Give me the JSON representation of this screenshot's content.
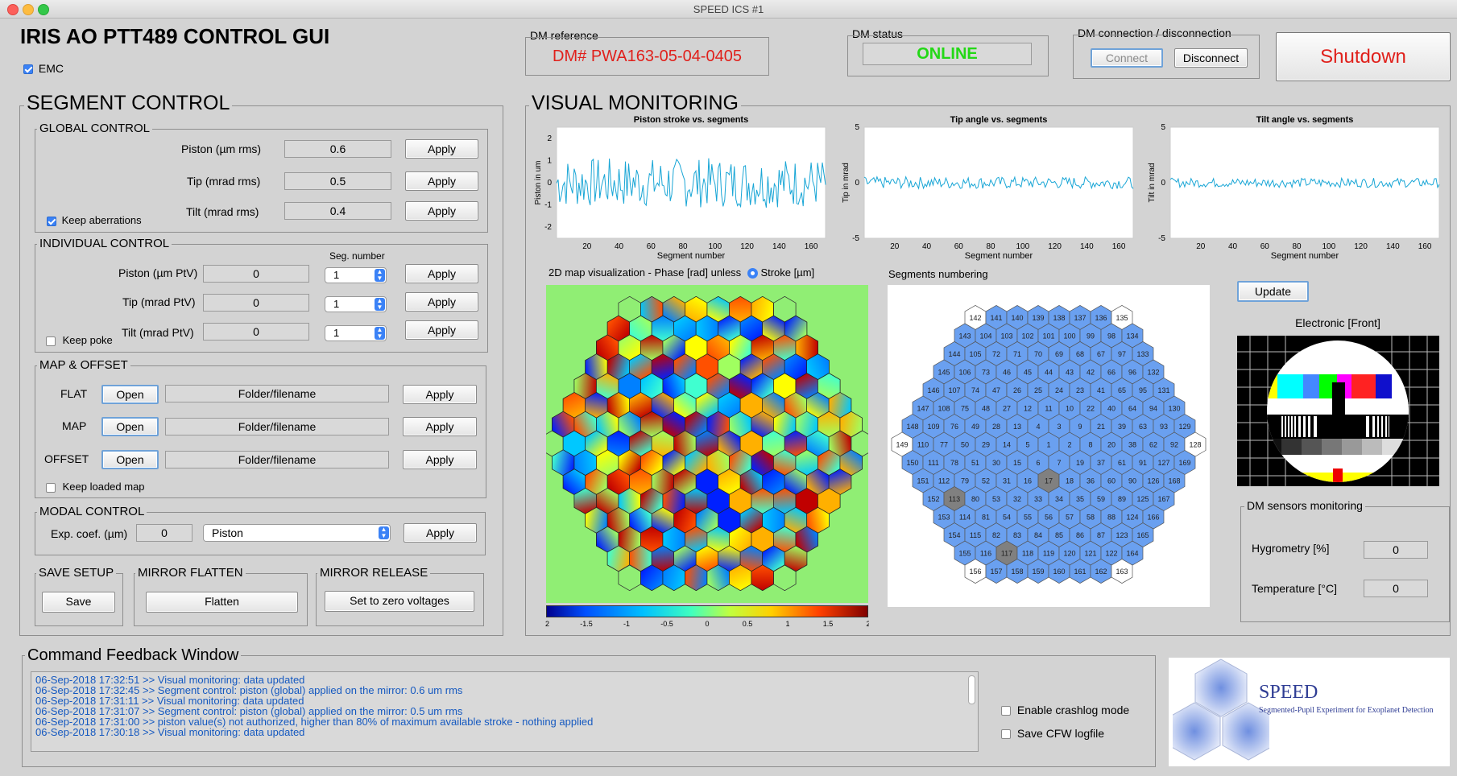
{
  "window": {
    "title": "SPEED ICS #1"
  },
  "header": {
    "title": "IRIS AO PTT489 CONTROL GUI",
    "emc_label": "EMC"
  },
  "dm_reference": {
    "label": "DM reference",
    "value": "DM# PWA163-05-04-0405",
    "color": "#e0201b"
  },
  "dm_status": {
    "label": "DM status",
    "value": "ONLINE",
    "color": "#23d816"
  },
  "dm_connection": {
    "label": "DM connection / disconnection",
    "connect": "Connect",
    "disconnect": "Disconnect"
  },
  "shutdown": {
    "label": "Shutdown",
    "color": "#e0201b"
  },
  "segment_control": {
    "title": "SEGMENT CONTROL",
    "global": {
      "title": "GLOBAL CONTROL",
      "rows": [
        {
          "label": "Piston (µm rms)",
          "value": "0.6",
          "apply": "Apply"
        },
        {
          "label": "Tip (mrad rms)",
          "value": "0.5",
          "apply": "Apply"
        },
        {
          "label": "Tilt (mrad rms)",
          "value": "0.4",
          "apply": "Apply"
        }
      ],
      "keep_label": "Keep aberrations"
    },
    "individual": {
      "title": "INDIVIDUAL CONTROL",
      "seg_header": "Seg. number",
      "rows": [
        {
          "label": "Piston (µm PtV)",
          "value": "0",
          "seg": "1",
          "apply": "Apply"
        },
        {
          "label": "Tip (mrad PtV)",
          "value": "0",
          "seg": "1",
          "apply": "Apply"
        },
        {
          "label": "Tilt (mrad PtV)",
          "value": "0",
          "seg": "1",
          "apply": "Apply"
        }
      ],
      "keep_label": "Keep poke"
    },
    "map_offset": {
      "title": "MAP & OFFSET",
      "rows": [
        {
          "label": "FLAT",
          "open": "Open",
          "file": "Folder/filename",
          "apply": "Apply"
        },
        {
          "label": "MAP",
          "open": "Open",
          "file": "Folder/filename",
          "apply": "Apply"
        },
        {
          "label": "OFFSET",
          "open": "Open",
          "file": "Folder/filename",
          "apply": "Apply"
        }
      ],
      "keep_label": "Keep loaded map"
    },
    "modal": {
      "title": "MODAL CONTROL",
      "label": "Exp. coef. (µm)",
      "value": "0",
      "mode": "Piston",
      "apply": "Apply"
    },
    "save": {
      "title": "SAVE SETUP",
      "button": "Save"
    },
    "flatten": {
      "title": "MIRROR FLATTEN",
      "button": "Flatten"
    },
    "release": {
      "title": "MIRROR RELEASE",
      "button": "Set to zero voltages"
    }
  },
  "visual": {
    "title": "VISUAL MONITORING",
    "plots": [
      {
        "title": "Piston stroke vs. segments",
        "ylabel": "Piston in um",
        "xlabel": "Segment number",
        "yticks": [
          "2",
          "1",
          "0",
          "-1",
          "-2"
        ],
        "ylim": [
          -2.5,
          2.5
        ],
        "amp": 0.7
      },
      {
        "title": "Tip angle vs. segments",
        "ylabel": "Tip in mrad",
        "xlabel": "Segment number",
        "yticks": [
          "5",
          "0",
          "-5"
        ],
        "ylim": [
          -5,
          5
        ],
        "amp": 0.45
      },
      {
        "title": "Tilt angle vs. segments",
        "ylabel": "Tilt in mrad",
        "xlabel": "Segment number",
        "yticks": [
          "5",
          "0",
          "-5"
        ],
        "ylim": [
          -5,
          5
        ],
        "amp": 0.35
      }
    ],
    "xticks": [
      "20",
      "40",
      "60",
      "80",
      "100",
      "120",
      "140",
      "160"
    ],
    "map_label": "2D map visualization - Phase [rad] unless",
    "stroke_label": "Stroke [µm]",
    "colorbar_ticks": [
      "-2",
      "-1.5",
      "-1",
      "-0.5",
      "0",
      "0.5",
      "1",
      "1.5",
      "2"
    ],
    "numbering_title": "Segments numbering",
    "segment_rows": [
      [
        "142",
        "141",
        "140",
        "139",
        "138",
        "137",
        "136",
        "135"
      ],
      [
        "143",
        "104",
        "103",
        "102",
        "101",
        "100",
        "99",
        "98",
        "134"
      ],
      [
        "144",
        "105",
        "72",
        "71",
        "70",
        "69",
        "68",
        "67",
        "97",
        "133"
      ],
      [
        "145",
        "106",
        "73",
        "46",
        "45",
        "44",
        "43",
        "42",
        "66",
        "96",
        "132"
      ],
      [
        "146",
        "107",
        "74",
        "47",
        "26",
        "25",
        "24",
        "23",
        "41",
        "65",
        "95",
        "131"
      ],
      [
        "147",
        "108",
        "75",
        "48",
        "27",
        "12",
        "11",
        "10",
        "22",
        "40",
        "64",
        "94",
        "130"
      ],
      [
        "148",
        "109",
        "76",
        "49",
        "28",
        "13",
        "4",
        "3",
        "9",
        "21",
        "39",
        "63",
        "93",
        "129"
      ],
      [
        "149",
        "110",
        "77",
        "50",
        "29",
        "14",
        "5",
        "1",
        "2",
        "8",
        "20",
        "38",
        "62",
        "92",
        "128"
      ],
      [
        "150",
        "111",
        "78",
        "51",
        "30",
        "15",
        "6",
        "7",
        "19",
        "37",
        "61",
        "91",
        "127",
        "169"
      ],
      [
        "151",
        "112",
        "79",
        "52",
        "31",
        "16",
        "17",
        "18",
        "36",
        "60",
        "90",
        "126",
        "168"
      ],
      [
        "152",
        "113",
        "80",
        "53",
        "32",
        "33",
        "34",
        "35",
        "59",
        "89",
        "125",
        "167"
      ],
      [
        "153",
        "114",
        "81",
        "54",
        "55",
        "56",
        "57",
        "58",
        "88",
        "124",
        "166"
      ],
      [
        "154",
        "115",
        "82",
        "83",
        "84",
        "85",
        "86",
        "87",
        "123",
        "165"
      ],
      [
        "155",
        "116",
        "117",
        "118",
        "119",
        "120",
        "121",
        "122",
        "164"
      ],
      [
        "156",
        "157",
        "158",
        "159",
        "160",
        "161",
        "162",
        "163"
      ]
    ],
    "inactive_segments": [
      "142",
      "135",
      "149",
      "128",
      "156",
      "163"
    ],
    "grey_segments": [
      "17",
      "113",
      "117"
    ],
    "update": "Update",
    "electronic_label": "Electronic [Front]",
    "sensors": {
      "title": "DM sensors monitoring",
      "hygro_label": "Hygrometry [%]",
      "hygro_value": "0",
      "temp_label": "Temperature [°C]",
      "temp_value": "0"
    }
  },
  "feedback": {
    "title": "Command Feedback Window",
    "lines": [
      "06-Sep-2018 17:32:51 >> Visual monitoring: data updated",
      "06-Sep-2018 17:32:45 >> Segment control: piston (global) applied on the mirror: 0.6 um rms",
      "06-Sep-2018 17:31:11 >> Visual monitoring: data updated",
      "06-Sep-2018 17:31:07 >> Segment control: piston (global) applied on the mirror: 0.5 um rms",
      "06-Sep-2018 17:31:00 >> piston value(s) not authorized, higher than 80% of maximum available stroke - nothing applied",
      "06-Sep-2018 17:30:18 >> Visual monitoring: data updated"
    ],
    "crashlog": "Enable crashlog mode",
    "cfw": "Save CFW logfile"
  },
  "logo": {
    "name": "SPEED",
    "tagline": "Segmented-Pupil Experiment for Exoplanet Detection"
  }
}
